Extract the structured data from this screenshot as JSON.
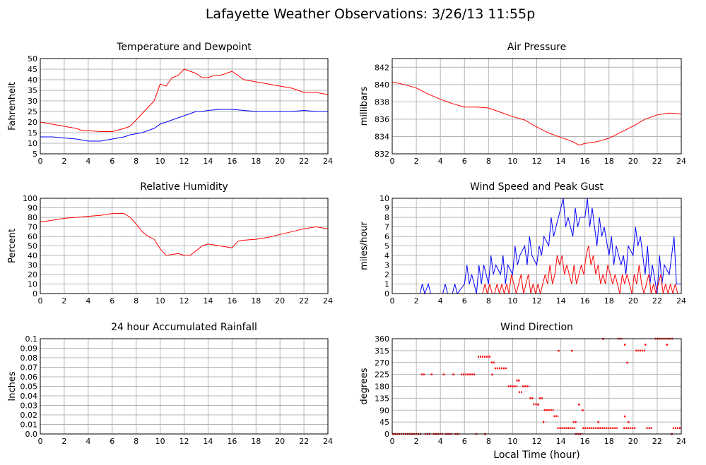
{
  "page": {
    "title": "Lafayette Weather Observations: 3/26/13 11:55p"
  },
  "colors": {
    "red": "#ff0000",
    "blue": "#0000ff",
    "grid": "#b4b4b4"
  },
  "chart_data": [
    {
      "id": "temp",
      "type": "line",
      "title": "Temperature and Dewpoint",
      "ylabel": "Fahrenheit",
      "xlabel": "",
      "xlim": [
        0,
        24
      ],
      "ylim": [
        5,
        50
      ],
      "xticks": [
        0,
        2,
        4,
        6,
        8,
        10,
        12,
        14,
        16,
        18,
        20,
        22,
        24
      ],
      "yticks": [
        5,
        10,
        15,
        20,
        25,
        30,
        35,
        40,
        45,
        50
      ],
      "grid": true,
      "series": [
        {
          "color": "#ff0000",
          "x": [
            0,
            1,
            2,
            3,
            3.5,
            4,
            5,
            6,
            7,
            7.5,
            8,
            8.5,
            9,
            9.5,
            10,
            10.5,
            11,
            11.5,
            12,
            12.5,
            13,
            13.5,
            14,
            14.5,
            15,
            15.5,
            16,
            16.5,
            17,
            18,
            19,
            20,
            21,
            22,
            23,
            24
          ],
          "y": [
            20,
            19,
            18,
            17,
            16,
            16,
            15.5,
            15.5,
            17,
            18,
            21,
            24,
            27,
            30,
            38,
            37,
            41,
            42,
            45,
            44,
            43,
            41,
            41,
            42,
            42,
            43,
            44,
            42,
            40,
            39,
            38,
            37,
            36,
            34,
            34,
            33
          ]
        },
        {
          "color": "#0000ff",
          "x": [
            0,
            1,
            2,
            3,
            4,
            5,
            6,
            7,
            7.5,
            8,
            8.5,
            9,
            9.5,
            10,
            10.5,
            11,
            11.5,
            12,
            12.5,
            13,
            13.5,
            14,
            15,
            16,
            17,
            18,
            19,
            20,
            21,
            22,
            23,
            24
          ],
          "y": [
            13,
            13,
            12.5,
            12,
            11,
            11,
            12,
            13,
            14,
            14.5,
            15,
            16,
            17,
            19,
            20,
            21,
            22,
            23,
            24,
            25,
            25,
            25.5,
            26,
            26,
            25.5,
            25,
            25,
            25,
            25,
            25.5,
            25,
            25
          ]
        }
      ]
    },
    {
      "id": "pressure",
      "type": "line",
      "title": "Air Pressure",
      "ylabel": "millibars",
      "xlabel": "",
      "xlim": [
        0,
        24
      ],
      "ylim": [
        832,
        843
      ],
      "xticks": [
        0,
        2,
        4,
        6,
        8,
        10,
        12,
        14,
        16,
        18,
        20,
        22,
        24
      ],
      "yticks": [
        832,
        834,
        836,
        838,
        840,
        842
      ],
      "grid": true,
      "series": [
        {
          "color": "#ff0000",
          "x": [
            0,
            1,
            2,
            3,
            4,
            5,
            6,
            7,
            8,
            9,
            10,
            11,
            12,
            13,
            14,
            15,
            15.5,
            16,
            17,
            18,
            19,
            20,
            21,
            22,
            23,
            24
          ],
          "y": [
            840.3,
            840,
            839.6,
            838.9,
            838.3,
            837.8,
            837.4,
            837.4,
            837.3,
            836.8,
            836.3,
            835.9,
            835.1,
            834.4,
            833.9,
            833.4,
            833,
            833.2,
            833.4,
            833.8,
            834.5,
            835.2,
            836,
            836.5,
            836.7,
            836.6
          ]
        }
      ]
    },
    {
      "id": "humidity",
      "type": "line",
      "title": "Relative Humidity",
      "ylabel": "Percent",
      "xlabel": "",
      "xlim": [
        0,
        24
      ],
      "ylim": [
        0,
        100
      ],
      "xticks": [
        0,
        2,
        4,
        6,
        8,
        10,
        12,
        14,
        16,
        18,
        20,
        22,
        24
      ],
      "yticks": [
        0,
        10,
        20,
        30,
        40,
        50,
        60,
        70,
        80,
        90,
        100
      ],
      "grid": true,
      "series": [
        {
          "color": "#ff0000",
          "x": [
            0,
            1,
            2,
            3,
            4,
            5,
            6,
            7,
            7.5,
            8,
            8.5,
            9,
            9.5,
            10,
            10.5,
            11,
            11.5,
            12,
            12.5,
            13,
            13.5,
            14,
            15,
            15.5,
            16,
            16.5,
            17,
            18,
            19,
            20,
            21,
            22,
            23,
            24
          ],
          "y": [
            75,
            77,
            79,
            80,
            81,
            82,
            84,
            84,
            80,
            73,
            65,
            60,
            57,
            47,
            40,
            41,
            42,
            40,
            40,
            45,
            50,
            52,
            50,
            49,
            48,
            55,
            56,
            57,
            59,
            62,
            65,
            68,
            70,
            68
          ]
        }
      ]
    },
    {
      "id": "wind",
      "type": "line",
      "title": "Wind Speed and Peak Gust",
      "ylabel": "miles/hour",
      "xlabel": "",
      "xlim": [
        0,
        24
      ],
      "ylim": [
        0,
        10
      ],
      "xticks": [
        0,
        2,
        4,
        6,
        8,
        10,
        12,
        14,
        16,
        18,
        20,
        22,
        24
      ],
      "yticks": [
        0,
        1,
        2,
        3,
        4,
        5,
        6,
        7,
        8,
        9,
        10
      ],
      "grid": true,
      "series": [
        {
          "color": "#0000ff",
          "x": [
            0,
            2.3,
            2.5,
            2.7,
            3,
            3.2,
            3.4,
            4.2,
            4.4,
            4.6,
            5,
            5.2,
            5.4,
            6,
            6.2,
            6.4,
            6.6,
            7,
            7.2,
            7.4,
            7.6,
            8,
            8.2,
            8.4,
            8.6,
            9,
            9.2,
            9.4,
            9.6,
            10,
            10.2,
            10.4,
            10.6,
            11,
            11.2,
            11.4,
            11.6,
            12,
            12.2,
            12.4,
            12.6,
            13,
            13.2,
            13.4,
            13.6,
            14,
            14.2,
            14.4,
            14.6,
            15,
            15.2,
            15.4,
            15.6,
            16,
            16.2,
            16.4,
            16.6,
            17,
            17.2,
            17.4,
            17.6,
            18,
            18.2,
            18.4,
            18.6,
            19,
            19.2,
            19.4,
            19.6,
            20,
            20.2,
            20.4,
            20.6,
            21,
            21.2,
            21.4,
            21.6,
            22,
            22.2,
            22.4,
            22.6,
            23,
            23.2,
            23.4,
            23.6,
            24
          ],
          "y": [
            0,
            0,
            1,
            0,
            1,
            0,
            0,
            0,
            1,
            0,
            0,
            1,
            0,
            1,
            3,
            1,
            2,
            0,
            3,
            1,
            3,
            1,
            4,
            2,
            3,
            2,
            4,
            1,
            3,
            2,
            5,
            3,
            4,
            5,
            3,
            6,
            4,
            3,
            5,
            4,
            6,
            5,
            8,
            6,
            7,
            9,
            10,
            7,
            8,
            6,
            9,
            7,
            8,
            8,
            10,
            7,
            9,
            5,
            8,
            6,
            7,
            4,
            6,
            3,
            5,
            3,
            4,
            2,
            5,
            4,
            7,
            5,
            6,
            2,
            5,
            1,
            3,
            0,
            4,
            1,
            3,
            2,
            4,
            6,
            1,
            1
          ]
        },
        {
          "color": "#ff0000",
          "x": [
            0,
            7.5,
            7.7,
            7.9,
            8.1,
            8.3,
            8.5,
            8.7,
            8.9,
            9.1,
            9.3,
            9.5,
            9.7,
            9.9,
            10.1,
            10.3,
            10.5,
            10.7,
            10.9,
            11.1,
            11.3,
            11.5,
            11.7,
            11.9,
            12.1,
            12.3,
            12.5,
            12.7,
            12.9,
            13.1,
            13.3,
            13.5,
            13.7,
            13.9,
            14.1,
            14.3,
            14.5,
            14.7,
            14.9,
            15.1,
            15.3,
            15.5,
            15.7,
            15.9,
            16.1,
            16.3,
            16.5,
            16.7,
            16.9,
            17.1,
            17.3,
            17.5,
            17.7,
            17.9,
            18.1,
            18.3,
            18.5,
            18.7,
            18.9,
            19.1,
            19.3,
            19.5,
            19.7,
            19.9,
            20.1,
            20.3,
            20.5,
            20.7,
            20.9,
            21.1,
            21.3,
            21.5,
            21.7,
            21.9,
            22.1,
            22.3,
            22.5,
            22.7,
            22.9,
            23.1,
            23.3,
            23.5,
            23.7,
            24
          ],
          "y": [
            0,
            0,
            1,
            0,
            1,
            0,
            0,
            1,
            0,
            1,
            0,
            1,
            0,
            2,
            1,
            0,
            1,
            2,
            0,
            1,
            2,
            0,
            1,
            0,
            1,
            0,
            1,
            2,
            1,
            3,
            1,
            2,
            4,
            3,
            4,
            2,
            3,
            2,
            1,
            3,
            1,
            2,
            3,
            2,
            4,
            5,
            3,
            4,
            2,
            3,
            1,
            2,
            1,
            3,
            2,
            1,
            2,
            1,
            0,
            2,
            1,
            2,
            1,
            0,
            2,
            1,
            3,
            1,
            0,
            1,
            2,
            0,
            1,
            0,
            1,
            2,
            0,
            1,
            0,
            1,
            0,
            1,
            0,
            0
          ]
        }
      ]
    },
    {
      "id": "rain",
      "type": "line",
      "title": "24 hour Accumulated Rainfall",
      "ylabel": "Inches",
      "xlabel": "",
      "xlim": [
        0,
        24
      ],
      "ylim": [
        0,
        0.1
      ],
      "xticks": [
        0,
        2,
        4,
        6,
        8,
        10,
        12,
        14,
        16,
        18,
        20,
        22,
        24
      ],
      "yticks": [
        0.0,
        0.01,
        0.02,
        0.03,
        0.04,
        0.05,
        0.06,
        0.07,
        0.08,
        0.09,
        0.1
      ],
      "ytick_labels": [
        "0.0",
        "0.01",
        "0.02",
        "0.03",
        "0.04",
        "0.05",
        "0.06",
        "0.07",
        "0.08",
        "0.09",
        "0.1"
      ],
      "grid": true,
      "series": [
        {
          "color": "#ff0000",
          "x": [
            0,
            24
          ],
          "y": [
            0,
            0
          ]
        }
      ]
    },
    {
      "id": "direction",
      "type": "scatter",
      "title": "Wind Direction",
      "ylabel": "degrees",
      "xlabel": "Local Time (hour)",
      "xlim": [
        0,
        24
      ],
      "ylim": [
        0,
        360
      ],
      "xticks": [
        0,
        2,
        4,
        6,
        8,
        10,
        12,
        14,
        16,
        18,
        20,
        22,
        24
      ],
      "yticks": [
        0,
        45,
        90,
        135,
        180,
        225,
        270,
        315,
        360
      ],
      "grid": true,
      "series": [
        {
          "color": "#ff0000",
          "runs": [
            [
              0,
              2.4,
              0
            ],
            [
              2.4,
              2.7,
              225
            ],
            [
              2.7,
              3.2,
              0
            ],
            [
              3.2,
              3.4,
              225
            ],
            [
              3.4,
              4.2,
              0
            ],
            [
              4.2,
              4.4,
              225
            ],
            [
              4.4,
              5.0,
              0
            ],
            [
              5.0,
              5.2,
              225
            ],
            [
              5.2,
              5.6,
              0
            ],
            [
              5.7,
              6.9,
              225
            ],
            [
              6.9,
              7.1,
              0
            ],
            [
              7.1,
              8.2,
              292
            ],
            [
              8.2,
              8.5,
              270
            ],
            [
              8.5,
              9.5,
              248
            ],
            [
              9.6,
              10.4,
              180
            ],
            [
              10.3,
              10.5,
              202
            ],
            [
              10.5,
              10.8,
              158
            ],
            [
              10.8,
              11.4,
              180
            ],
            [
              11.4,
              11.7,
              135
            ],
            [
              11.7,
              12.2,
              112
            ],
            [
              12.2,
              12.5,
              135
            ],
            [
              12.5,
              12.7,
              45
            ],
            [
              12.6,
              13.4,
              90
            ],
            [
              13.4,
              13.8,
              67
            ],
            [
              13.7,
              15.2,
              22
            ],
            [
              15.0,
              15.3,
              45
            ],
            [
              15.2,
              15.8,
              0
            ],
            [
              15.8,
              18.7,
              22
            ],
            [
              18.7,
              19.1,
              360
            ],
            [
              19.2,
              20.2,
              22
            ],
            [
              20.2,
              21.0,
              315
            ],
            [
              21.1,
              21.6,
              22
            ],
            [
              21.8,
              23.3,
              360
            ],
            [
              23.3,
              24,
              22
            ]
          ],
          "points": [
            [
              7.7,
              0
            ],
            [
              8.3,
              225
            ],
            [
              10.5,
              203
            ],
            [
              12.1,
              112
            ],
            [
              13.8,
              315
            ],
            [
              14.9,
              315
            ],
            [
              15.5,
              112
            ],
            [
              15.8,
              90
            ],
            [
              17.1,
              45
            ],
            [
              17.5,
              360
            ],
            [
              19.3,
              338
            ],
            [
              19.5,
              270
            ],
            [
              19.3,
              67
            ],
            [
              19.6,
              45
            ],
            [
              21.0,
              338
            ],
            [
              22.8,
              338
            ],
            [
              23.2,
              0
            ]
          ]
        }
      ]
    }
  ]
}
